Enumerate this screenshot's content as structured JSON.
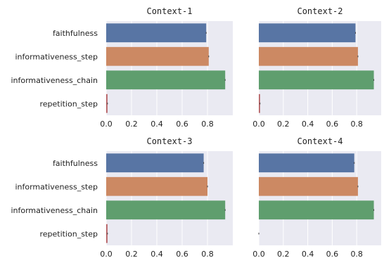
{
  "chart_data": [
    {
      "type": "bar",
      "orientation": "horizontal",
      "title": "Context-1",
      "categories": [
        "faithfulness",
        "informativeness_step",
        "informativeness_chain",
        "repetition_step"
      ],
      "values": [
        0.79,
        0.81,
        0.94,
        0.01
      ],
      "colors": [
        "#5875a4",
        "#cc8963",
        "#5f9e6e",
        "#b55d60"
      ],
      "xlim": [
        0,
        1.0
      ],
      "xticks": [
        "0.0",
        "0.2",
        "0.4",
        "0.6",
        "0.8"
      ],
      "show_category_labels": true,
      "grid": true
    },
    {
      "type": "bar",
      "orientation": "horizontal",
      "title": "Context-2",
      "categories": [
        "faithfulness",
        "informativeness_step",
        "informativeness_chain",
        "repetition_step"
      ],
      "values": [
        0.79,
        0.81,
        0.94,
        0.01
      ],
      "colors": [
        "#5875a4",
        "#cc8963",
        "#5f9e6e",
        "#b55d60"
      ],
      "xlim": [
        0,
        1.0
      ],
      "xticks": [
        "0.0",
        "0.2",
        "0.4",
        "0.6",
        "0.8"
      ],
      "show_category_labels": false,
      "grid": true
    },
    {
      "type": "bar",
      "orientation": "horizontal",
      "title": "Context-3",
      "categories": [
        "faithfulness",
        "informativeness_step",
        "informativeness_chain",
        "repetition_step"
      ],
      "values": [
        0.77,
        0.8,
        0.94,
        0.01
      ],
      "colors": [
        "#5875a4",
        "#cc8963",
        "#5f9e6e",
        "#b55d60"
      ],
      "xlim": [
        0,
        1.0
      ],
      "xticks": [
        "0.0",
        "0.2",
        "0.4",
        "0.6",
        "0.8"
      ],
      "show_category_labels": true,
      "grid": true
    },
    {
      "type": "bar",
      "orientation": "horizontal",
      "title": "Context-4",
      "categories": [
        "faithfulness",
        "informativeness_step",
        "informativeness_chain",
        "repetition_step"
      ],
      "values": [
        0.78,
        0.81,
        0.94,
        0.0
      ],
      "colors": [
        "#5875a4",
        "#cc8963",
        "#5f9e6e",
        "#b55d60"
      ],
      "xlim": [
        0,
        1.0
      ],
      "xticks": [
        "0.0",
        "0.2",
        "0.4",
        "0.6",
        "0.8"
      ],
      "show_category_labels": false,
      "grid": true
    }
  ]
}
